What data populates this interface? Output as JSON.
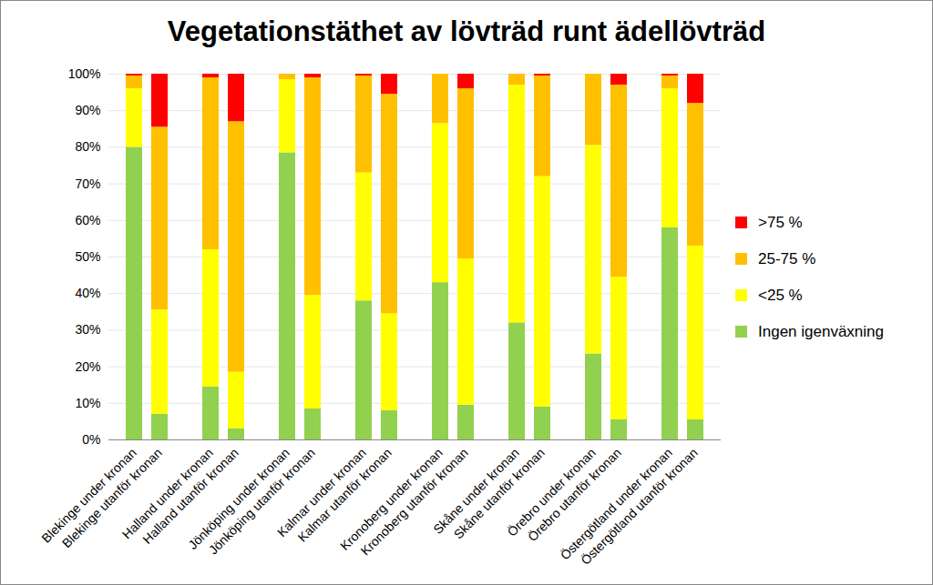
{
  "chart_data": {
    "type": "bar",
    "title": "Vegetationstäthet av lövträd runt ädellövträd",
    "stacked": true,
    "grid": true,
    "legend": "right",
    "categories": [
      "Blekinge under kronan",
      "Blekinge utanför kronan",
      null,
      "Halland under kronan",
      "Halland utanför kronan",
      null,
      "Jönköping under kronan",
      "Jönköping utanför kronan",
      null,
      "Kalmar under kronan",
      "Kalmar utanför kronan",
      null,
      "Kronoberg under kronan",
      "Kronoberg utanför kronan",
      null,
      "Skåne under kronan",
      "Skåne utanför kronan",
      null,
      "Örebro under kronan",
      "Örebro utanför kronan",
      null,
      "Östergötland under kronan",
      "Östergötland utanför kronan"
    ],
    "series": [
      {
        "name": "Ingen igenväxning",
        "color": "#92d050",
        "values": [
          80,
          7,
          null,
          14.5,
          3,
          null,
          78.5,
          8.5,
          null,
          38,
          8,
          null,
          43,
          9.5,
          null,
          32,
          9,
          null,
          23.5,
          5.5,
          null,
          58,
          5.5
        ]
      },
      {
        "name": "<25 %",
        "color": "#ffff00",
        "values": [
          16,
          28.5,
          null,
          37.5,
          15.5,
          null,
          20,
          31,
          null,
          35,
          26.5,
          null,
          43.5,
          40,
          null,
          65,
          63,
          null,
          57,
          39,
          null,
          38,
          47.5
        ]
      },
      {
        "name": "25-75 %",
        "color": "#ffc000",
        "values": [
          3.5,
          50,
          null,
          47,
          68.5,
          null,
          1.5,
          59.5,
          null,
          26.5,
          60,
          null,
          13.5,
          46.5,
          null,
          3,
          27.5,
          null,
          19.5,
          52.5,
          null,
          3.5,
          39
        ]
      },
      {
        "name": ">75 %",
        "color": "#ff0000",
        "values": [
          0.5,
          14.5,
          null,
          1,
          13,
          null,
          0,
          1,
          null,
          0.5,
          5.5,
          null,
          0,
          4,
          null,
          0,
          0.5,
          null,
          0,
          3,
          null,
          0.5,
          8
        ]
      }
    ],
    "ylim": [
      0,
      100
    ],
    "yticks": [
      {
        "value": 0,
        "label": "0%"
      },
      {
        "value": 10,
        "label": "10%"
      },
      {
        "value": 20,
        "label": "20%"
      },
      {
        "value": 30,
        "label": "30%"
      },
      {
        "value": 40,
        "label": "40%"
      },
      {
        "value": 50,
        "label": "50%"
      },
      {
        "value": 60,
        "label": "60%"
      },
      {
        "value": 70,
        "label": "70%"
      },
      {
        "value": 80,
        "label": "80%"
      },
      {
        "value": 90,
        "label": "90%"
      },
      {
        "value": 100,
        "label": "100%"
      }
    ]
  }
}
